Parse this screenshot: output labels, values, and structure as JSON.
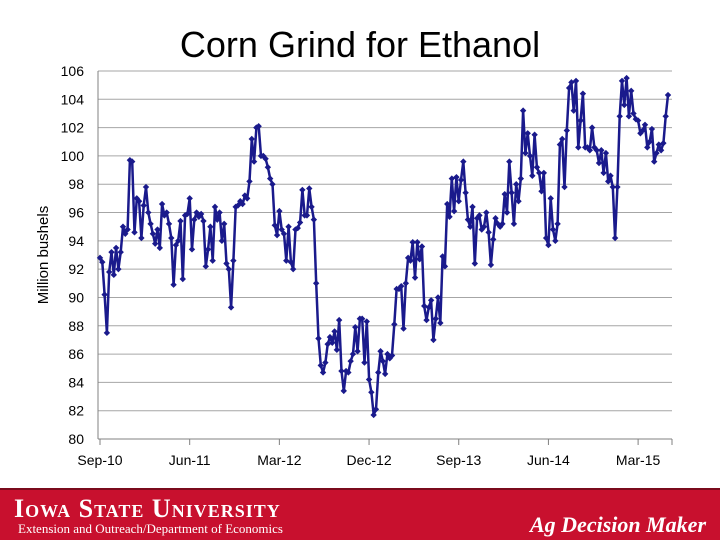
{
  "footer": {
    "university": "Iowa State University",
    "department": "Extension and Outreach/Department of Economics",
    "brand": "Ag Decision Maker",
    "color": "#c8102e"
  },
  "chart_data": {
    "type": "line",
    "title": "Corn Grind for Ethanol",
    "xlabel": "",
    "ylabel": "Million bushels",
    "ylim": [
      80,
      106
    ],
    "yticks": [
      80,
      82,
      84,
      86,
      88,
      90,
      92,
      94,
      96,
      98,
      100,
      102,
      104,
      106
    ],
    "xtick_labels": [
      "Sep-10",
      "Jun-11",
      "Mar-12",
      "Dec-12",
      "Sep-13",
      "Jun-14",
      "Mar-15"
    ],
    "grid": "horizontal",
    "legend": "none",
    "series_color": "#1a1a8c",
    "series": [
      {
        "name": "",
        "unit": "week",
        "values": [
          92.8,
          92.5,
          90.2,
          87.5,
          91.8,
          93.2,
          91.6,
          93.5,
          92.0,
          93.2,
          95.0,
          94.5,
          94.8,
          99.7,
          99.6,
          94.6,
          97.0,
          96.8,
          94.2,
          96.5,
          97.8,
          96.0,
          95.2,
          94.5,
          93.8,
          94.8,
          93.5,
          96.6,
          95.8,
          96.0,
          95.2,
          94.2,
          90.9,
          93.7,
          94.0,
          95.4,
          91.3,
          95.8,
          95.9,
          97.0,
          93.4,
          95.5,
          96.0,
          95.7,
          95.9,
          95.4,
          92.2,
          93.4,
          95.0,
          92.6,
          96.4,
          95.5,
          96.0,
          94.0,
          95.2,
          92.4,
          92.0,
          89.3,
          92.6,
          96.4,
          96.5,
          96.8,
          96.6,
          97.2,
          97.0,
          98.2,
          101.2,
          99.6,
          102.0,
          102.1,
          100.0,
          100.0,
          99.8,
          99.2,
          98.4,
          98.0,
          95.1,
          94.4,
          96.1,
          94.8,
          94.5,
          92.6,
          95.0,
          92.5,
          92.0,
          94.8,
          94.9,
          95.3,
          97.6,
          95.8,
          95.8,
          97.7,
          96.4,
          95.5,
          91.0,
          87.1,
          85.2,
          84.7,
          85.4,
          86.7,
          87.2,
          86.8,
          87.6,
          86.3,
          88.4,
          84.8,
          83.4,
          84.8,
          84.7,
          85.5,
          86.0,
          87.9,
          86.2,
          88.5,
          88.5,
          85.4,
          88.3,
          84.2,
          83.3,
          81.7,
          82.1,
          84.7,
          86.2,
          85.5,
          84.6,
          86.0,
          85.7,
          85.9,
          88.1,
          90.6,
          90.6,
          90.8,
          87.8,
          91.0,
          92.8,
          92.6,
          93.9,
          91.4,
          93.9,
          92.7,
          93.6,
          89.4,
          88.4,
          89.3,
          89.8,
          87.0,
          88.5,
          90.0,
          88.2,
          92.9,
          92.2,
          96.6,
          95.7,
          98.4,
          96.1,
          98.5,
          96.8,
          98.3,
          99.6,
          97.4,
          95.5,
          95.0,
          96.4,
          92.4,
          95.6,
          95.8,
          94.8,
          95.0,
          96.0,
          94.6,
          92.3,
          94.1,
          95.6,
          95.2,
          95.0,
          95.2,
          97.3,
          96.0,
          99.6,
          97.4,
          95.2,
          98.0,
          96.8,
          98.4,
          103.2,
          100.2,
          101.6,
          100.0,
          98.6,
          101.5,
          99.2,
          98.8,
          97.5,
          98.8,
          94.2,
          93.7,
          97.0,
          94.8,
          94.0,
          95.2,
          100.8,
          101.2,
          97.8,
          101.8,
          104.8,
          105.2,
          103.2,
          105.3,
          100.6,
          102.5,
          104.4,
          100.6,
          100.6,
          100.4,
          102.0,
          100.6,
          100.4,
          99.5,
          100.4,
          98.8,
          100.2,
          98.2,
          98.6,
          97.8,
          94.2,
          97.8,
          102.8,
          105.3,
          103.6,
          105.5,
          102.8,
          104.6,
          103.0,
          102.6,
          102.5,
          101.6,
          101.8,
          102.2,
          100.6,
          101.0,
          101.9,
          99.6,
          100.2,
          100.8,
          100.4,
          100.9,
          102.8,
          104.3
        ]
      }
    ]
  }
}
